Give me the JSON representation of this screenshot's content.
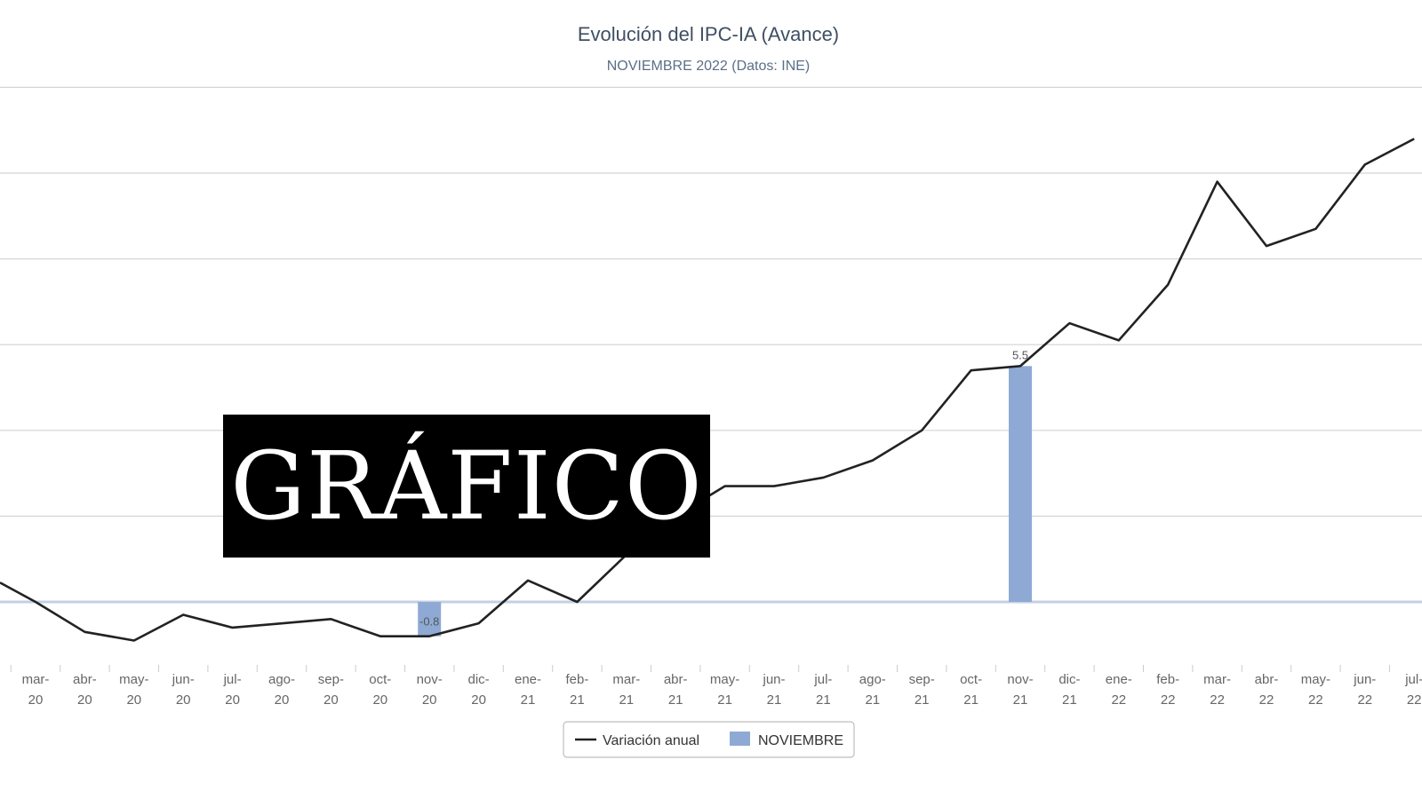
{
  "overlay_label": "GRÁFICO",
  "chart_data": {
    "type": "line",
    "title": "Evolución del IPC-IA (Avance)",
    "subtitle": "NOVIEMBRE 2022 (Datos: INE)",
    "categories": [
      [
        "mar-",
        "20"
      ],
      [
        "abr-",
        "20"
      ],
      [
        "may-",
        "20"
      ],
      [
        "jun-",
        "20"
      ],
      [
        "jul-",
        "20"
      ],
      [
        "ago-",
        "20"
      ],
      [
        "sep-",
        "20"
      ],
      [
        "oct-",
        "20"
      ],
      [
        "nov-",
        "20"
      ],
      [
        "dic-",
        "20"
      ],
      [
        "ene-",
        "21"
      ],
      [
        "feb-",
        "21"
      ],
      [
        "mar-",
        "21"
      ],
      [
        "abr-",
        "21"
      ],
      [
        "may-",
        "21"
      ],
      [
        "jun-",
        "21"
      ],
      [
        "jul-",
        "21"
      ],
      [
        "ago-",
        "21"
      ],
      [
        "sep-",
        "21"
      ],
      [
        "oct-",
        "21"
      ],
      [
        "nov-",
        "21"
      ],
      [
        "dic-",
        "21"
      ],
      [
        "ene-",
        "22"
      ],
      [
        "feb-",
        "22"
      ],
      [
        "mar-",
        "22"
      ],
      [
        "abr-",
        "22"
      ],
      [
        "may-",
        "22"
      ],
      [
        "jun-",
        "22"
      ],
      [
        "jul-",
        "22"
      ]
    ],
    "series": [
      {
        "name": "Variación anual",
        "kind": "line",
        "color": "#222222",
        "values": [
          0.0,
          -0.7,
          -0.9,
          -0.3,
          -0.6,
          -0.5,
          -0.4,
          -0.8,
          -0.8,
          -0.5,
          0.5,
          0.0,
          1.1,
          2.0,
          2.7,
          2.7,
          2.9,
          3.3,
          4.0,
          5.4,
          5.5,
          6.5,
          6.1,
          7.4,
          9.8,
          8.3,
          8.7,
          10.2,
          10.8
        ]
      },
      {
        "name": "NOVIEMBRE",
        "kind": "bar",
        "color": "#8eaad4",
        "points": [
          {
            "category_index": 8,
            "value": -0.8,
            "label": "-0.8"
          },
          {
            "category_index": 20,
            "value": 5.5,
            "label": "5.5"
          }
        ]
      }
    ],
    "ylim": [
      -1.5,
      12
    ],
    "yticks": [
      0,
      2,
      4,
      6,
      8,
      10,
      12
    ],
    "grid": true,
    "legend": "bottom-center"
  }
}
